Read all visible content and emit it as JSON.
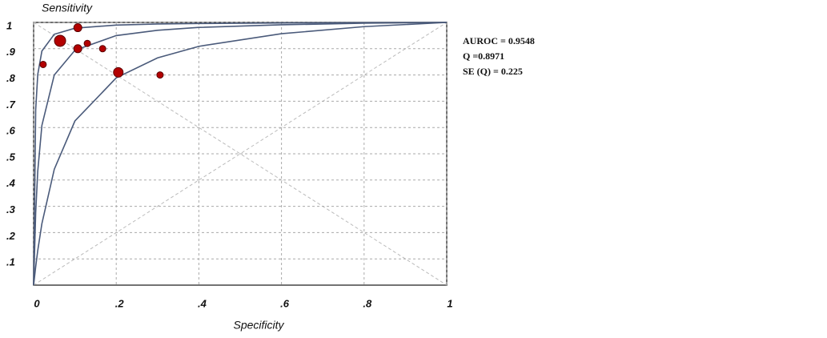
{
  "chart_data": {
    "type": "scatter",
    "y_label": "Sensitivity",
    "x_label": "Specificity",
    "annotations": [
      "AUROC = 0.9548",
      "Q =0.8971",
      "SE (Q) = 0.225"
    ],
    "x": [
      0.107,
      0.064,
      0.13,
      0.107,
      0.167,
      0.023,
      0.205,
      0.306
    ],
    "values": [
      0.98,
      0.93,
      0.92,
      0.9,
      0.9,
      0.84,
      0.81,
      0.8
    ],
    "sizes": [
      5,
      7,
      4,
      5,
      4,
      4,
      6,
      4
    ],
    "color": "#b30000",
    "curves": [
      {
        "color": "#4a5a7a",
        "x": [
          0,
          0.005,
          0.01,
          0.02,
          0.05,
          0.1,
          0.2,
          0.3,
          0.4,
          0.6,
          0.8,
          1
        ],
        "values": [
          0,
          0.668,
          0.802,
          0.891,
          0.955,
          0.978,
          0.99,
          0.994,
          0.996,
          0.998,
          0.999,
          1
        ]
      },
      {
        "color": "#4a5a7a",
        "x": [
          0,
          0.005,
          0.01,
          0.02,
          0.05,
          0.1,
          0.2,
          0.3,
          0.4,
          0.6,
          0.8,
          1
        ],
        "values": [
          0,
          0.276,
          0.434,
          0.608,
          0.8,
          0.894,
          0.95,
          0.97,
          0.981,
          0.991,
          0.997,
          1
        ]
      },
      {
        "color": "#4a5a7a",
        "x": [
          0,
          0.005,
          0.01,
          0.02,
          0.05,
          0.1,
          0.2,
          0.3,
          0.4,
          0.6,
          0.8,
          1
        ],
        "values": [
          0,
          0.07,
          0.132,
          0.234,
          0.441,
          0.625,
          0.789,
          0.865,
          0.909,
          0.957,
          0.984,
          1
        ]
      }
    ],
    "xlim": [
      0,
      1
    ],
    "ylim": [
      0,
      1
    ],
    "xticks": [
      0,
      {
        "value": 0.2,
        "label": ".2"
      },
      {
        "value": 0.4,
        "label": ".4"
      },
      {
        "value": 0.6,
        "label": ".6"
      },
      {
        "value": 0.8,
        "label": ".8"
      },
      1
    ],
    "yticks": [
      {
        "value": 0.1,
        "label": ".1"
      },
      {
        "value": 0.2,
        "label": ".2"
      },
      {
        "value": 0.3,
        "label": ".3"
      },
      {
        "value": 0.4,
        "label": ".4"
      },
      {
        "value": 0.5,
        "label": ".5"
      },
      {
        "value": 0.6,
        "label": ".6"
      },
      {
        "value": 0.7,
        "label": ".7"
      },
      {
        "value": 0.8,
        "label": ".8"
      },
      {
        "value": 0.9,
        "label": ".9"
      },
      1
    ],
    "grid": true
  }
}
